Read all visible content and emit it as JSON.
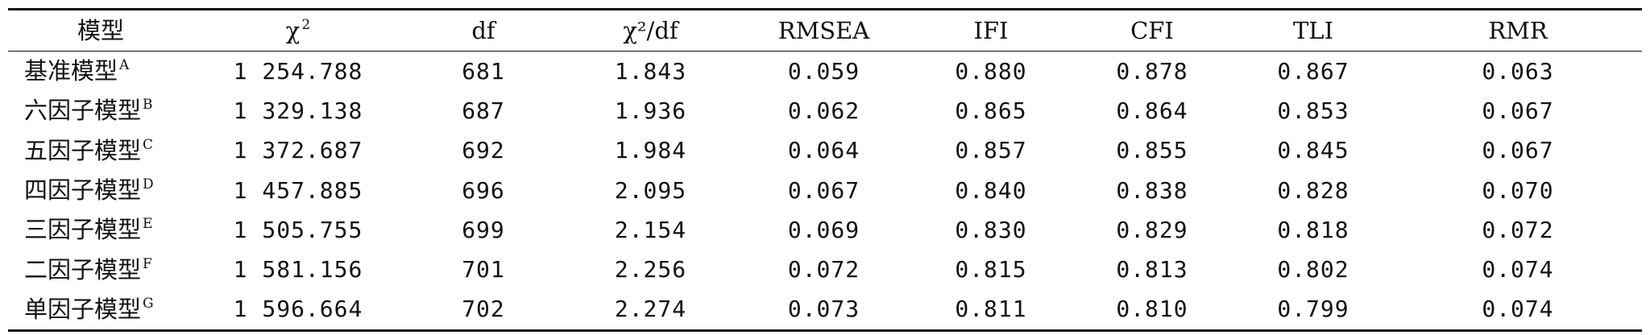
{
  "table": {
    "headers": [
      {
        "text": "模型",
        "sup": ""
      },
      {
        "text": "χ",
        "sup": "2"
      },
      {
        "text": "df",
        "sup": ""
      },
      {
        "text": "χ²/df",
        "sup": ""
      },
      {
        "text": "RMSEA",
        "sup": ""
      },
      {
        "text": "IFI",
        "sup": ""
      },
      {
        "text": "CFI",
        "sup": ""
      },
      {
        "text": "TLI",
        "sup": ""
      },
      {
        "text": "RMR",
        "sup": ""
      }
    ],
    "rows": [
      {
        "model": "基准模型",
        "sup": "A",
        "chi2": "1 254.788",
        "df": "681",
        "chi2df": "1.843",
        "rmsea": "0.059",
        "ifi": "0.880",
        "cfi": "0.878",
        "tli": "0.867",
        "rmr": "0.063"
      },
      {
        "model": "六因子模型",
        "sup": "B",
        "chi2": "1 329.138",
        "df": "687",
        "chi2df": "1.936",
        "rmsea": "0.062",
        "ifi": "0.865",
        "cfi": "0.864",
        "tli": "0.853",
        "rmr": "0.067"
      },
      {
        "model": "五因子模型",
        "sup": "C",
        "chi2": "1 372.687",
        "df": "692",
        "chi2df": "1.984",
        "rmsea": "0.064",
        "ifi": "0.857",
        "cfi": "0.855",
        "tli": "0.845",
        "rmr": "0.067"
      },
      {
        "model": "四因子模型",
        "sup": "D",
        "chi2": "1 457.885",
        "df": "696",
        "chi2df": "2.095",
        "rmsea": "0.067",
        "ifi": "0.840",
        "cfi": "0.838",
        "tli": "0.828",
        "rmr": "0.070"
      },
      {
        "model": "三因子模型",
        "sup": "E",
        "chi2": "1 505.755",
        "df": "699",
        "chi2df": "2.154",
        "rmsea": "0.069",
        "ifi": "0.830",
        "cfi": "0.829",
        "tli": "0.818",
        "rmr": "0.072"
      },
      {
        "model": "二因子模型",
        "sup": "F",
        "chi2": "1 581.156",
        "df": "701",
        "chi2df": "2.256",
        "rmsea": "0.072",
        "ifi": "0.815",
        "cfi": "0.813",
        "tli": "0.802",
        "rmr": "0.074"
      },
      {
        "model": "单因子模型",
        "sup": "G",
        "chi2": "1 596.664",
        "df": "702",
        "chi2df": "2.274",
        "rmsea": "0.073",
        "ifi": "0.811",
        "cfi": "0.810",
        "tli": "0.799",
        "rmr": "0.074"
      }
    ]
  }
}
